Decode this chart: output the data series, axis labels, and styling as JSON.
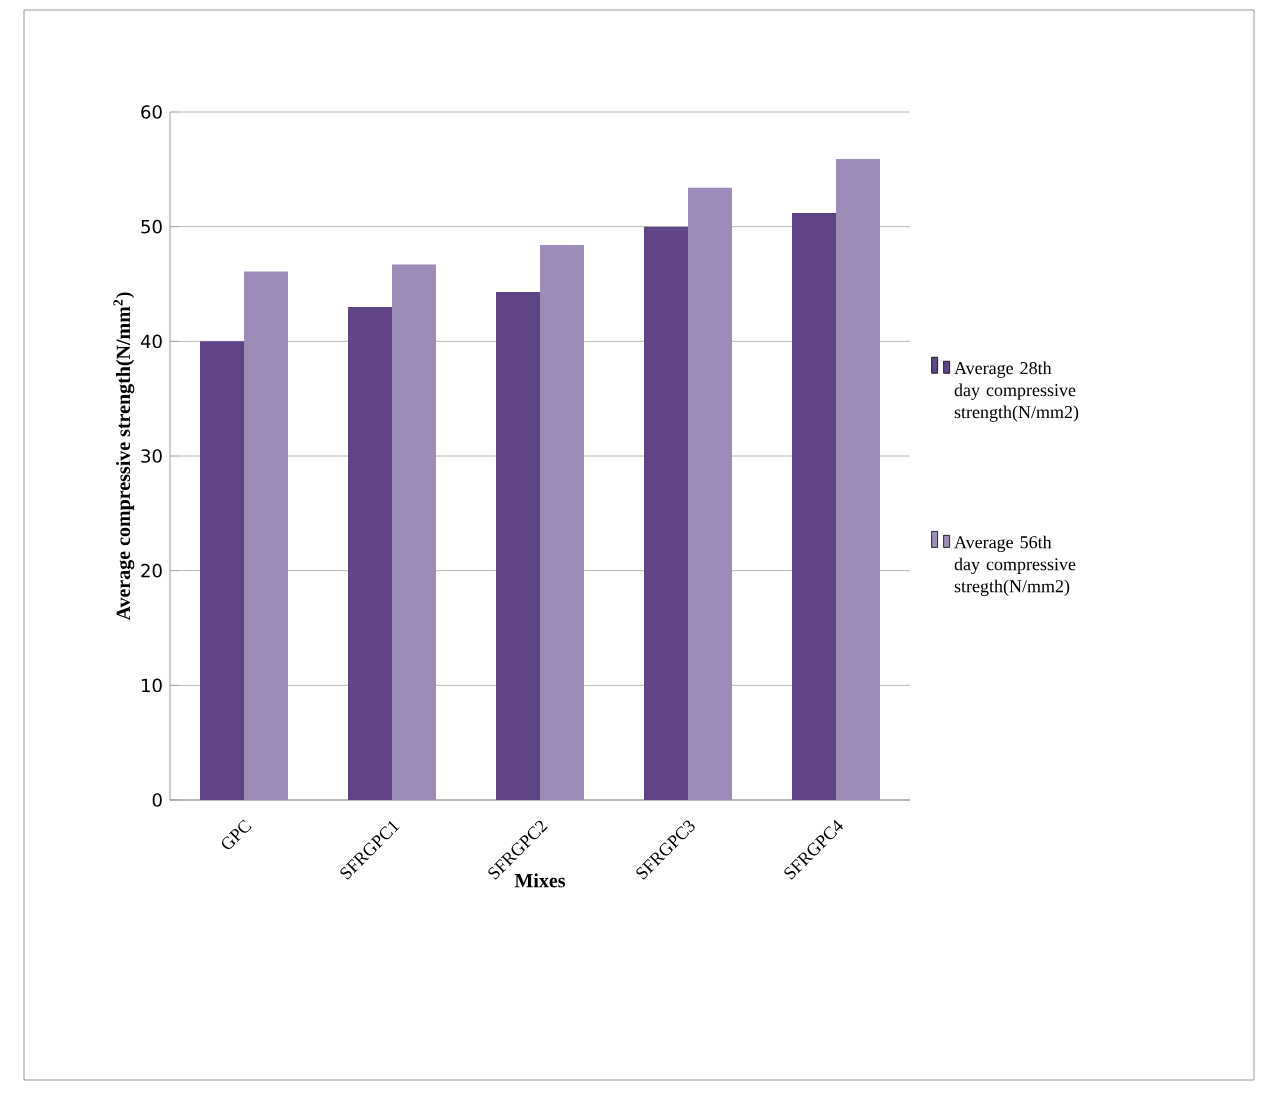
{
  "chart_data": {
    "type": "bar",
    "xlabel": "Mixes",
    "ylabel": "Average compressive strength(N/mm$^{2}$)",
    "categories": [
      "GPC",
      "SFRGPC1",
      "SFRGPC2",
      "SFRGPC3",
      "SFRGPC4"
    ],
    "series": [
      {
        "name": "Average 28th day compressive strength(N/mm2)",
        "color": "#5f4585",
        "values": [
          40.0,
          43.0,
          44.3,
          50.0,
          51.2
        ]
      },
      {
        "name": "Average 56th day compressive stregth(N/mm2)",
        "color": "#9d8bb8",
        "values": [
          46.1,
          46.7,
          48.4,
          53.4,
          55.9
        ]
      }
    ],
    "ylim": [
      0,
      60
    ],
    "yticks": [
      0,
      10,
      20,
      30,
      40,
      50,
      60
    ],
    "grid": "y",
    "legend": "right"
  }
}
